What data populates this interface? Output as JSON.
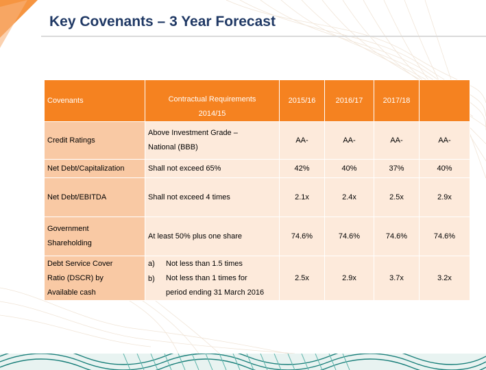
{
  "page": {
    "title": "Key Covenants – 3 Year Forecast"
  },
  "table": {
    "header": {
      "covenants": "Covenants",
      "requirements_line1": "Contractual Requirements",
      "requirements_line2": "2014/15",
      "y1": "2015/16",
      "y2": "2016/17",
      "y3": "2017/18"
    },
    "rows": [
      {
        "label": "Credit Ratings",
        "req_line1": "Above Investment Grade –",
        "req_line2": "National (BBB)",
        "v0": "AA-",
        "v1": "AA-",
        "v2": "AA-",
        "v3": "AA-"
      },
      {
        "label": "Net Debt/Capitalization",
        "req_line1": "Shall not exceed 65%",
        "v0": "42%",
        "v1": "40%",
        "v2": "37%",
        "v3": "40%"
      },
      {
        "label": "Net Debt/EBITDA",
        "req_line1": "Shall not exceed 4 times",
        "v0": "2.1x",
        "v1": "2.4x",
        "v2": "2.5x",
        "v3": "2.9x"
      },
      {
        "label_line1": "Government",
        "label_line2": "Shareholding",
        "req_line1": "At least 50% plus one share",
        "v0": "74.6%",
        "v1": "74.6%",
        "v2": "74.6%",
        "v3": "74.6%"
      },
      {
        "label_line1": "Debt Service Cover",
        "label_line2": "Ratio (DSCR) by",
        "label_line3": "Available cash",
        "req_a_mark": "a)",
        "req_a_text": "Not less than 1.5 times",
        "req_b_mark": "b)",
        "req_b_text": "Not less than 1 times for",
        "req_b_text2": "period ending 31 March 2016",
        "v0": "2.5x",
        "v1": "2.9x",
        "v2": "3.7x",
        "v3": "3.2x"
      }
    ]
  },
  "colors": {
    "header_orange": "#f58220",
    "label_cell": "#f9c9a4",
    "body_cell": "#fdeadb",
    "title_navy": "#1f3864",
    "accent_teal": "#1a7f7a"
  }
}
